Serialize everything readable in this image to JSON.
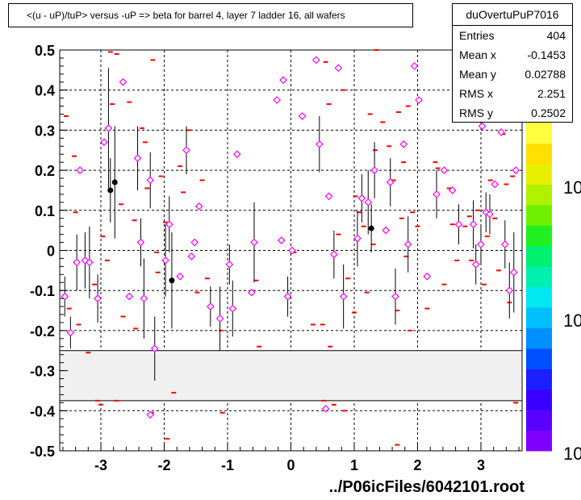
{
  "title": "<(u - uP)/tuP> versus  -uP => beta for barrel 4, layer 7 ladder 16, all wafers",
  "stats": {
    "name": "duOvertuPuP7016",
    "rows": [
      {
        "label": "Entries",
        "value": "404"
      },
      {
        "label": "Mean x",
        "value": "-0.1453"
      },
      {
        "label": "Mean y",
        "value": "0.02788"
      },
      {
        "label": "RMS x",
        "value": "2.251"
      },
      {
        "label": "RMS y",
        "value": "0.2502"
      }
    ]
  },
  "footer": "../P06icFiles/6042101.root",
  "colorbar": {
    "labels": [
      "10",
      "10",
      "10"
    ]
  },
  "colors": {
    "marker_pink": "#ff00ff",
    "marker_red": "#ff0000",
    "band_fill": "#f0f0f0"
  },
  "chart_data": {
    "type": "scatter",
    "xlim": [
      -3.65,
      3.65
    ],
    "ylim": [
      -0.5,
      0.5
    ],
    "xticks": [
      -3,
      -2,
      -1,
      0,
      1,
      2,
      3
    ],
    "yticks": [
      0.5,
      0.4,
      0.3,
      0.2,
      0.1,
      0,
      -0.1,
      -0.2,
      -0.3,
      -0.4,
      -0.5
    ],
    "ytick_labels": [
      "0.5",
      "0.4",
      "0.3",
      "0.2",
      "0.1",
      "0",
      "-0.1",
      "-0.2",
      "-0.3",
      "-0.4",
      "-0.5"
    ],
    "xtick_labels": [
      "-3",
      "-2",
      "-1",
      "0",
      "1",
      "2",
      "3"
    ],
    "grid": true,
    "shaded_band": [
      -0.375,
      -0.25
    ],
    "mean_points": [
      {
        "x": -3.57,
        "y": -0.115,
        "err": 0.05
      },
      {
        "x": -3.48,
        "y": -0.205,
        "err": 0.04
      },
      {
        "x": -3.38,
        "y": -0.03,
        "err": 0.07
      },
      {
        "x": -3.33,
        "y": 0.2,
        "err": 0.0
      },
      {
        "x": -3.25,
        "y": -0.025,
        "err": 0.07
      },
      {
        "x": -3.18,
        "y": -0.03,
        "err": 0.09
      },
      {
        "x": -3.05,
        "y": -0.12,
        "err": 0.06
      },
      {
        "x": -2.95,
        "y": 0.27,
        "err": 0.0
      },
      {
        "x": -2.88,
        "y": 0.305,
        "err": 0.15
      },
      {
        "x": -2.65,
        "y": 0.42,
        "err": 0.0
      },
      {
        "x": -2.55,
        "y": -0.115,
        "err": 0.0
      },
      {
        "x": -2.42,
        "y": 0.23,
        "err": 0.08
      },
      {
        "x": -2.37,
        "y": 0.02,
        "err": 0.06
      },
      {
        "x": -2.32,
        "y": -0.12,
        "err": 0.1
      },
      {
        "x": -2.22,
        "y": 0.175,
        "err": 0.07
      },
      {
        "x": -2.15,
        "y": -0.245,
        "err": 0.08
      },
      {
        "x": -1.98,
        "y": -0.025,
        "err": 0.09
      },
      {
        "x": -1.92,
        "y": 0.065,
        "err": 0.07
      },
      {
        "x": -1.75,
        "y": -0.065,
        "err": 0.0
      },
      {
        "x": -1.65,
        "y": 0.25,
        "err": 0.06
      },
      {
        "x": -1.57,
        "y": -0.015,
        "err": 0.0
      },
      {
        "x": -1.52,
        "y": 0.02,
        "err": 0.0
      },
      {
        "x": -1.45,
        "y": 0.11,
        "err": 0.0
      },
      {
        "x": -1.27,
        "y": -0.14,
        "err": 0.05
      },
      {
        "x": -1.12,
        "y": -0.17,
        "err": 0.08
      },
      {
        "x": -0.97,
        "y": -0.035,
        "err": 0.05
      },
      {
        "x": -0.92,
        "y": -0.145,
        "err": 0.07
      },
      {
        "x": -0.85,
        "y": 0.24,
        "err": 0.0
      },
      {
        "x": -0.58,
        "y": 0.02,
        "err": 0.1
      },
      {
        "x": -0.62,
        "y": -0.105,
        "err": 0.0
      },
      {
        "x": -0.22,
        "y": 0.375,
        "err": 0.0
      },
      {
        "x": -0.15,
        "y": 0.025,
        "err": 0.0
      },
      {
        "x": -0.12,
        "y": 0.425,
        "err": 0.0
      },
      {
        "x": -0.05,
        "y": -0.115,
        "err": 0.05
      },
      {
        "x": 0.02,
        "y": 0.0,
        "err": 0.0
      },
      {
        "x": 0.18,
        "y": 0.335,
        "err": 0.0
      },
      {
        "x": 0.4,
        "y": 0.475,
        "err": 0.0
      },
      {
        "x": 0.45,
        "y": 0.265,
        "err": 0.07
      },
      {
        "x": 0.6,
        "y": 0.135,
        "err": 0.0
      },
      {
        "x": 0.68,
        "y": -0.01,
        "err": 0.06
      },
      {
        "x": 0.75,
        "y": 0.455,
        "err": 0.0
      },
      {
        "x": 0.83,
        "y": -0.115,
        "err": 0.08
      },
      {
        "x": 1.05,
        "y": 0.03,
        "err": 0.07
      },
      {
        "x": 1.12,
        "y": 0.13,
        "err": 0.06
      },
      {
        "x": 1.22,
        "y": 0.12,
        "err": 0.08
      },
      {
        "x": 1.32,
        "y": 0.2,
        "err": 0.07
      },
      {
        "x": 1.5,
        "y": 0.05,
        "err": 0.0
      },
      {
        "x": 1.57,
        "y": 0.17,
        "err": 0.06
      },
      {
        "x": 1.65,
        "y": -0.115,
        "err": 0.07
      },
      {
        "x": 1.78,
        "y": 0.265,
        "err": 0.0
      },
      {
        "x": 1.85,
        "y": 0.015,
        "err": 0.07
      },
      {
        "x": 1.95,
        "y": 0.46,
        "err": 0.0
      },
      {
        "x": 2.02,
        "y": 0.375,
        "err": 0.0
      },
      {
        "x": 2.15,
        "y": -0.065,
        "err": 0.0
      },
      {
        "x": 2.3,
        "y": 0.14,
        "err": 0.06
      },
      {
        "x": 2.42,
        "y": 0.2,
        "err": 0.0
      },
      {
        "x": 2.55,
        "y": 0.15,
        "err": 0.0
      },
      {
        "x": 2.65,
        "y": 0.065,
        "err": 0.05
      },
      {
        "x": 2.75,
        "y": 0.335,
        "err": 0.0
      },
      {
        "x": 2.88,
        "y": 0.065,
        "err": 0.06
      },
      {
        "x": 2.92,
        "y": -0.035,
        "err": 0.05
      },
      {
        "x": 3.0,
        "y": 0.015,
        "err": 0.05
      },
      {
        "x": 3.02,
        "y": 0.31,
        "err": 0.0
      },
      {
        "x": 3.08,
        "y": 0.095,
        "err": 0.05
      },
      {
        "x": 3.14,
        "y": 0.09,
        "err": 0.05
      },
      {
        "x": 3.22,
        "y": 0.165,
        "err": 0.0
      },
      {
        "x": 3.32,
        "y": 0.295,
        "err": 0.0
      },
      {
        "x": 3.38,
        "y": 0.015,
        "err": 0.06
      },
      {
        "x": 3.45,
        "y": -0.1,
        "err": 0.07
      },
      {
        "x": 3.52,
        "y": -0.055,
        "err": 0.1
      },
      {
        "x": 3.55,
        "y": 0.2,
        "err": 0.0
      },
      {
        "x": -2.22,
        "y": -0.41,
        "err": 0.0
      },
      {
        "x": 0.55,
        "y": -0.395,
        "err": 0.0
      }
    ],
    "black_points": [
      {
        "x": -2.85,
        "y": 0.15,
        "err": 0.08
      },
      {
        "x": -2.78,
        "y": 0.17,
        "err": 0.14
      },
      {
        "x": -1.88,
        "y": -0.075,
        "err": 0.12
      },
      {
        "x": 1.27,
        "y": 0.055,
        "err": 0.06
      }
    ],
    "red_points": [
      {
        "x": -3.55,
        "y": 0.335
      },
      {
        "x": -3.42,
        "y": 0.235
      },
      {
        "x": -3.4,
        "y": 0.095
      },
      {
        "x": -3.5,
        "y": -0.145
      },
      {
        "x": -3.35,
        "y": -0.185
      },
      {
        "x": -3.2,
        "y": -0.255
      },
      {
        "x": -3.1,
        "y": -0.085
      },
      {
        "x": -2.97,
        "y": 0.035
      },
      {
        "x": -2.9,
        "y": 0.305
      },
      {
        "x": -2.85,
        "y": 0.495
      },
      {
        "x": -2.82,
        "y": 0.365
      },
      {
        "x": -2.9,
        "y": -0.025
      },
      {
        "x": -2.75,
        "y": 0.49
      },
      {
        "x": -2.68,
        "y": 0.115
      },
      {
        "x": -2.65,
        "y": -0.165
      },
      {
        "x": -2.55,
        "y": 0.37
      },
      {
        "x": -2.47,
        "y": 0.075
      },
      {
        "x": -2.45,
        "y": -0.195
      },
      {
        "x": -2.35,
        "y": 0.305
      },
      {
        "x": -2.3,
        "y": 0.27
      },
      {
        "x": -2.27,
        "y": 0.155
      },
      {
        "x": -2.18,
        "y": 0.475
      },
      {
        "x": -2.12,
        "y": -0.005
      },
      {
        "x": -2.1,
        "y": -0.055
      },
      {
        "x": -2.05,
        "y": 0.185
      },
      {
        "x": -1.98,
        "y": 0.07
      },
      {
        "x": -1.95,
        "y": -0.47
      },
      {
        "x": -1.85,
        "y": -0.355
      },
      {
        "x": -1.75,
        "y": 0.21
      },
      {
        "x": -1.7,
        "y": 0.145
      },
      {
        "x": -1.62,
        "y": 0.3
      },
      {
        "x": -1.48,
        "y": -0.105
      },
      {
        "x": -1.4,
        "y": 0.175
      },
      {
        "x": -1.32,
        "y": -0.07
      },
      {
        "x": -1.1,
        "y": -0.2
      },
      {
        "x": -1.08,
        "y": -0.405
      },
      {
        "x": -0.55,
        "y": -0.075
      },
      {
        "x": -0.5,
        "y": -0.24
      },
      {
        "x": 0.05,
        "y": -0.005
      },
      {
        "x": 0.35,
        "y": -0.185
      },
      {
        "x": 0.5,
        "y": -0.185
      },
      {
        "x": 0.55,
        "y": 0.47
      },
      {
        "x": 0.6,
        "y": 0.365
      },
      {
        "x": 0.62,
        "y": -0.24
      },
      {
        "x": 0.68,
        "y": -0.385
      },
      {
        "x": 0.75,
        "y": 0.04
      },
      {
        "x": 0.82,
        "y": 0.4
      },
      {
        "x": 0.85,
        "y": -0.4
      },
      {
        "x": 0.9,
        "y": -0.07
      },
      {
        "x": 1.0,
        "y": -0.155
      },
      {
        "x": 1.02,
        "y": 0.135
      },
      {
        "x": 1.08,
        "y": 0.095
      },
      {
        "x": 1.15,
        "y": 0.06
      },
      {
        "x": 1.2,
        "y": -0.105
      },
      {
        "x": 1.25,
        "y": 0.34
      },
      {
        "x": 1.3,
        "y": 0.015
      },
      {
        "x": 1.33,
        "y": 0.25
      },
      {
        "x": 1.35,
        "y": 0.5
      },
      {
        "x": 1.45,
        "y": 0.32
      },
      {
        "x": 1.5,
        "y": 0.05
      },
      {
        "x": 1.55,
        "y": 0.26
      },
      {
        "x": 1.62,
        "y": 0.175
      },
      {
        "x": 1.68,
        "y": -0.15
      },
      {
        "x": 1.7,
        "y": 0.345
      },
      {
        "x": 1.75,
        "y": 0.08
      },
      {
        "x": 1.78,
        "y": 0.22
      },
      {
        "x": 1.82,
        "y": -0.015
      },
      {
        "x": 1.85,
        "y": 0.36
      },
      {
        "x": 1.88,
        "y": -0.2
      },
      {
        "x": 1.92,
        "y": 0.095
      },
      {
        "x": 2.0,
        "y": 0.06
      },
      {
        "x": 2.15,
        "y": -0.145
      },
      {
        "x": 2.28,
        "y": 0.22
      },
      {
        "x": 2.32,
        "y": 0.205
      },
      {
        "x": 2.42,
        "y": -0.085
      },
      {
        "x": 2.5,
        "y": 0.155
      },
      {
        "x": 2.55,
        "y": 0.065
      },
      {
        "x": 2.62,
        "y": -0.025
      },
      {
        "x": 2.75,
        "y": 0.06
      },
      {
        "x": 2.82,
        "y": 0.085
      },
      {
        "x": 2.85,
        "y": -0.025
      },
      {
        "x": 2.95,
        "y": 0.1
      },
      {
        "x": 3.05,
        "y": -0.085
      },
      {
        "x": 3.1,
        "y": 0.035
      },
      {
        "x": 3.15,
        "y": 0.175
      },
      {
        "x": 3.22,
        "y": 0.08
      },
      {
        "x": 3.28,
        "y": -0.05
      },
      {
        "x": 3.35,
        "y": 0.29
      },
      {
        "x": 3.4,
        "y": 0.165
      },
      {
        "x": 3.45,
        "y": -0.13
      },
      {
        "x": 3.5,
        "y": 0.185
      },
      {
        "x": 3.55,
        "y": -0.38
      },
      {
        "x": -3.05,
        "y": -0.375
      },
      {
        "x": -3.0,
        "y": -0.385
      },
      {
        "x": -2.75,
        "y": -0.375
      },
      {
        "x": -2.2,
        "y": -0.405
      },
      {
        "x": 0.52,
        "y": -0.375
      },
      {
        "x": 1.68,
        "y": -0.485
      }
    ]
  }
}
